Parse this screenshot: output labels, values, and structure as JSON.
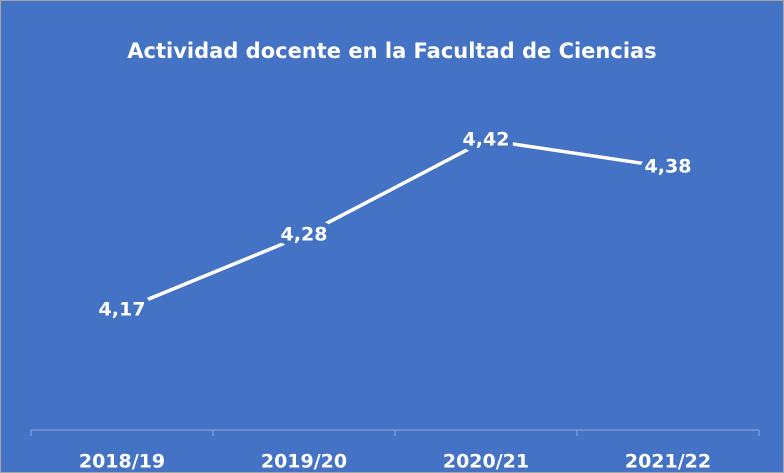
{
  "chart_data": {
    "type": "line",
    "title": "Actividad docente en la Facultad de Ciencias",
    "categories": [
      "2018/19",
      "2019/20",
      "2020/21",
      "2021/22"
    ],
    "values": [
      4.17,
      4.28,
      4.42,
      4.38
    ],
    "value_labels": [
      "4,17",
      "4,28",
      "4,42",
      "4,38"
    ],
    "color": "#ffffff",
    "background": "#4472c4"
  }
}
